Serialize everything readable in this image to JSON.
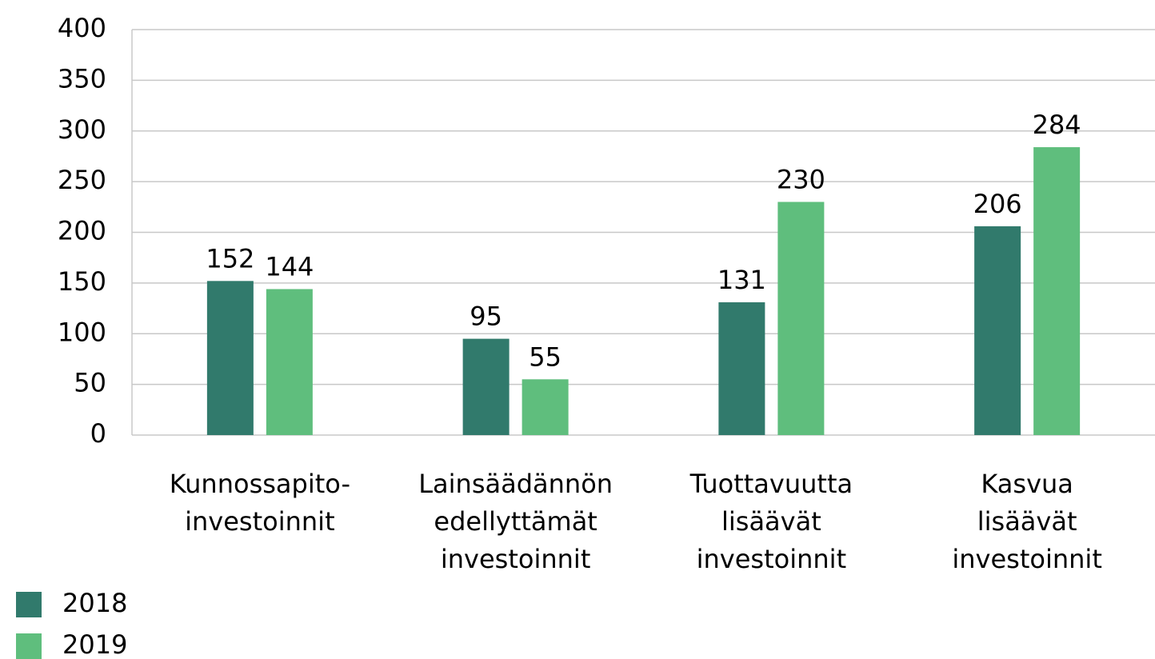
{
  "chart_data": {
    "type": "bar",
    "categories": [
      "Kunnossapito-\ninvestoinnit",
      "Lainsäädännön\nedellyttämät\ninvestoinnit",
      "Tuottavuutta\nlisäävät\ninvestoinnit",
      "Kasvua\nlisäävät\ninvestoinnit"
    ],
    "series": [
      {
        "name": "2018",
        "color": "#317a6c",
        "values": [
          152,
          95,
          131,
          206
        ]
      },
      {
        "name": "2019",
        "color": "#5fbe7d",
        "values": [
          144,
          55,
          230,
          284
        ]
      }
    ],
    "ylim": [
      0,
      400
    ],
    "yticks": [
      0,
      50,
      100,
      150,
      200,
      250,
      300,
      350,
      400
    ],
    "grid": true,
    "legend": "bottom-left"
  }
}
